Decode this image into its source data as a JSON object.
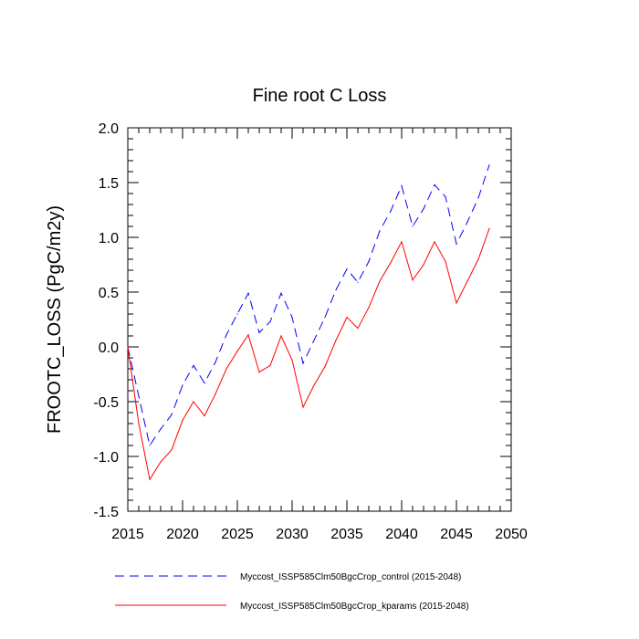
{
  "chart_data": {
    "type": "line",
    "title": "Fine root C Loss",
    "xlabel": "",
    "ylabel": "FROOTC_LOSS  (PgC/m2y)",
    "xlim": [
      2015,
      2050
    ],
    "ylim": [
      -1.5,
      2.0
    ],
    "x_ticks": [
      "2015",
      "2020",
      "2025",
      "2030",
      "2035",
      "2040",
      "2045",
      "2050"
    ],
    "y_ticks": [
      "-1.5",
      "-1.0",
      "-0.5",
      "0.0",
      "0.5",
      "1.0",
      "1.5",
      "2.0"
    ],
    "grid": false,
    "legend_position": "bottom",
    "x": [
      2015,
      2016,
      2017,
      2018,
      2019,
      2020,
      2021,
      2022,
      2023,
      2024,
      2025,
      2026,
      2027,
      2028,
      2029,
      2030,
      2031,
      2032,
      2033,
      2034,
      2035,
      2036,
      2037,
      2038,
      2039,
      2040,
      2041,
      2042,
      2043,
      2044,
      2045,
      2046,
      2047,
      2048
    ],
    "series": [
      {
        "name": "Myccost_ISSP585Clm50BgcCrop_control (2015-2048)",
        "color": "#0000ff",
        "dash": "dashed",
        "values": [
          0.0,
          -0.45,
          -0.9,
          -0.75,
          -0.62,
          -0.35,
          -0.17,
          -0.33,
          -0.14,
          0.11,
          0.3,
          0.49,
          0.13,
          0.23,
          0.49,
          0.27,
          -0.15,
          0.06,
          0.27,
          0.52,
          0.71,
          0.59,
          0.78,
          1.06,
          1.24,
          1.47,
          1.1,
          1.26,
          1.48,
          1.37,
          0.94,
          1.14,
          1.36,
          1.66
        ]
      },
      {
        "name": "Myccost_ISSP585Clm50BgcCrop_kparams (2015-2048)",
        "color": "#ff0000",
        "dash": "solid",
        "values": [
          0.0,
          -0.7,
          -1.21,
          -1.05,
          -0.94,
          -0.67,
          -0.5,
          -0.63,
          -0.43,
          -0.2,
          -0.04,
          0.11,
          -0.23,
          -0.17,
          0.1,
          -0.12,
          -0.55,
          -0.35,
          -0.18,
          0.06,
          0.27,
          0.17,
          0.36,
          0.6,
          0.77,
          0.96,
          0.61,
          0.75,
          0.96,
          0.78,
          0.4,
          0.6,
          0.8,
          1.08
        ]
      }
    ]
  }
}
